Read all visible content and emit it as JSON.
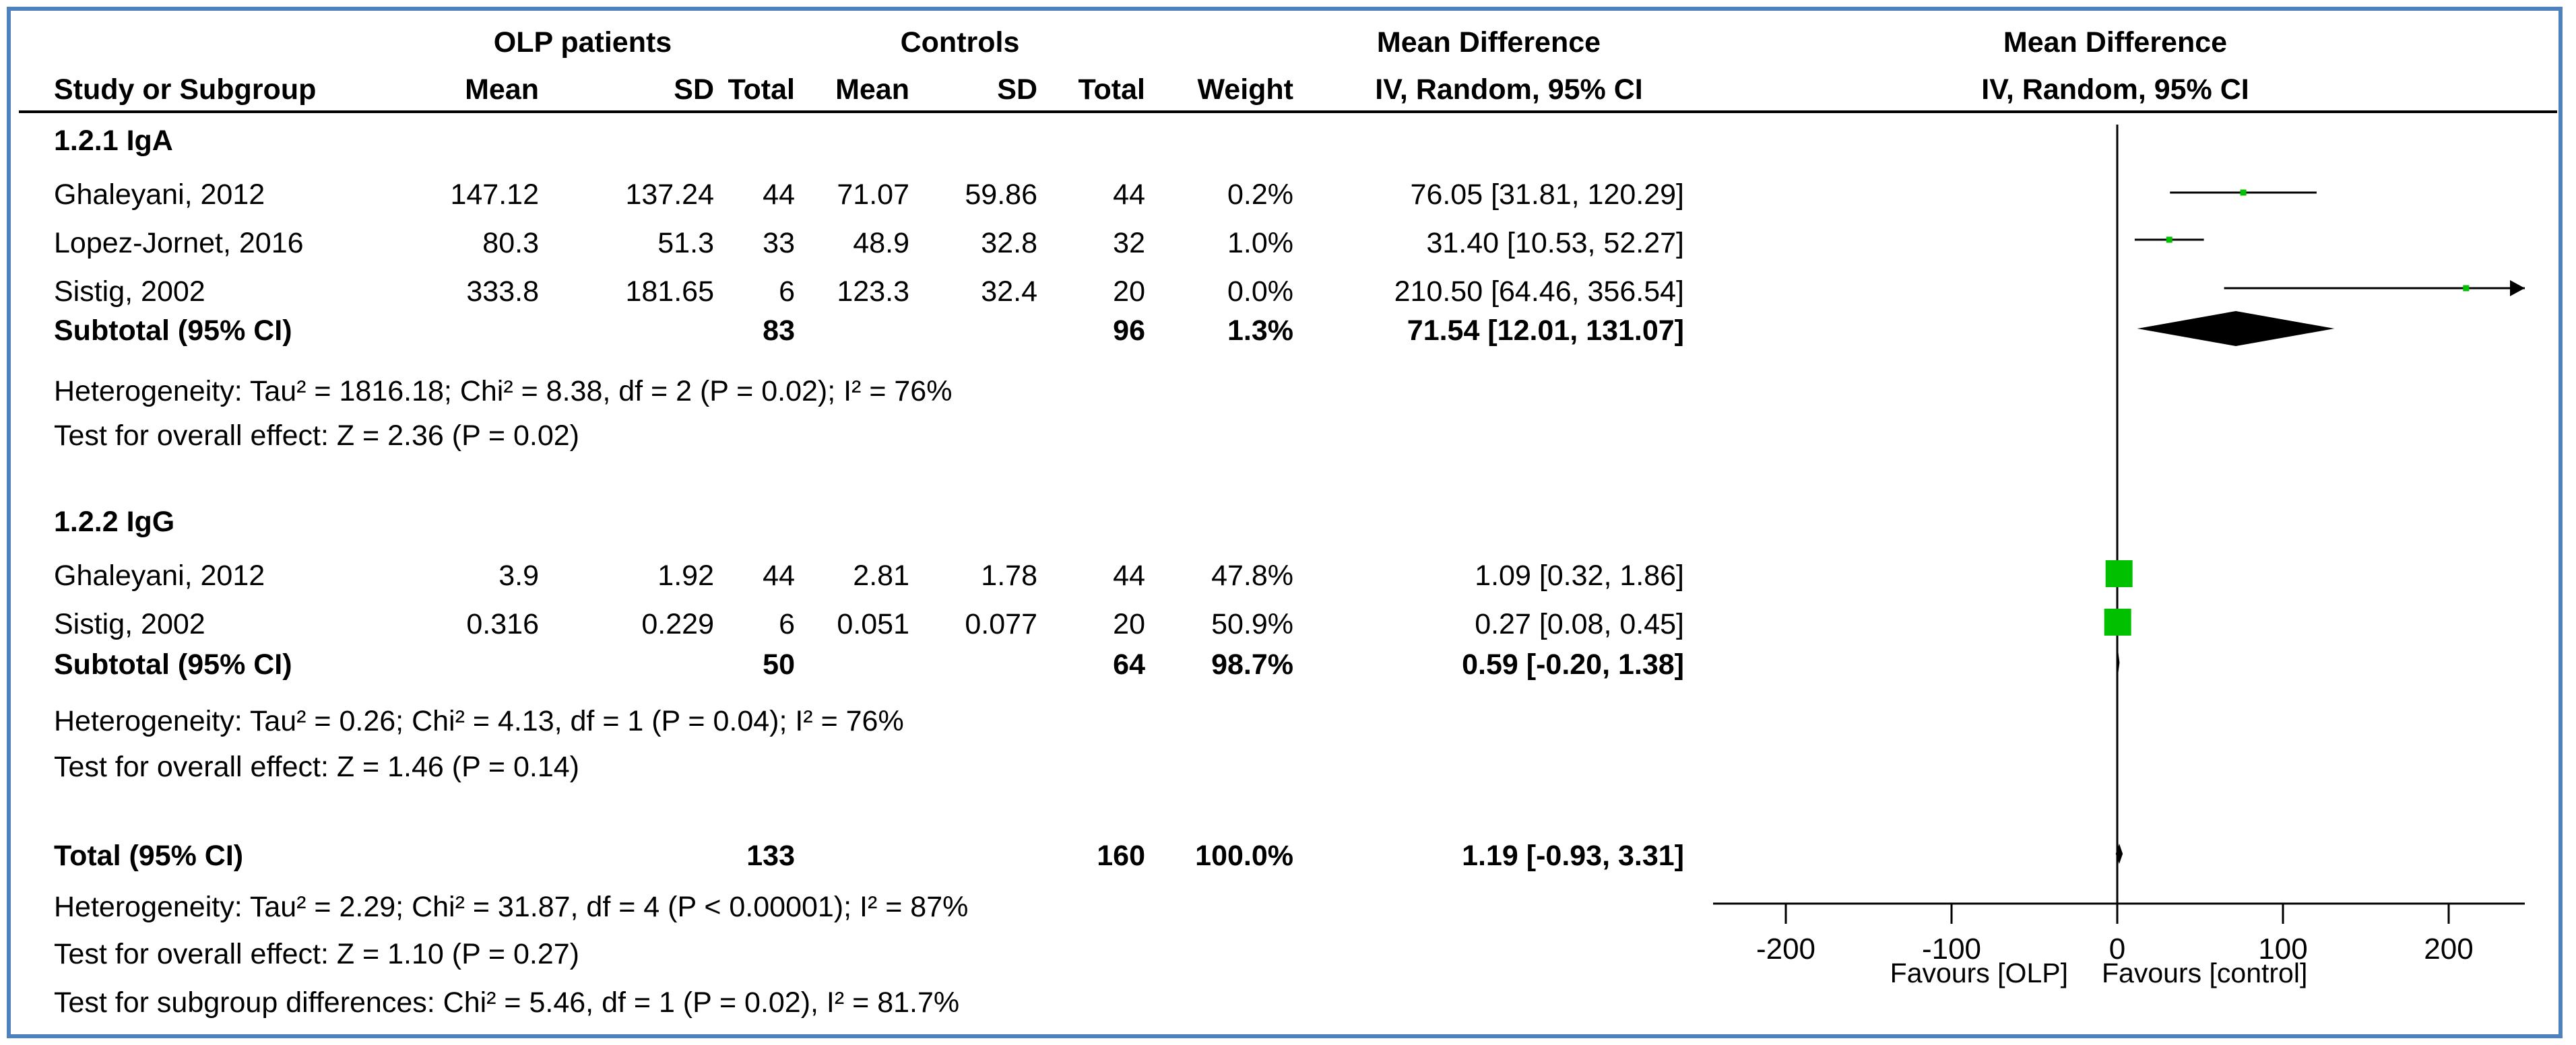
{
  "headers": {
    "group1": "OLP patients",
    "group2": "Controls",
    "effect_text": "Mean Difference",
    "effect_plot": "Mean Difference",
    "study": "Study or Subgroup",
    "mean1": "Mean",
    "sd1": "SD",
    "total1": "Total",
    "mean2": "Mean",
    "sd2": "SD",
    "total2": "Total",
    "weight": "Weight",
    "method_text": "IV, Random, 95% CI",
    "method_plot": "IV, Random, 95% CI"
  },
  "groups": [
    {
      "label": "1.2.1 IgA",
      "rows": [
        {
          "study": "Ghaleyani, 2012",
          "mean1": "147.12",
          "sd1": "137.24",
          "total1": "44",
          "mean2": "71.07",
          "sd2": "59.86",
          "total2": "44",
          "weight": "0.2%",
          "ci": "76.05 [31.81, 120.29]"
        },
        {
          "study": "Lopez-Jornet, 2016",
          "mean1": "80.3",
          "sd1": "51.3",
          "total1": "33",
          "mean2": "48.9",
          "sd2": "32.8",
          "total2": "32",
          "weight": "1.0%",
          "ci": "31.40 [10.53, 52.27]"
        },
        {
          "study": "Sistig, 2002",
          "mean1": "333.8",
          "sd1": "181.65",
          "total1": "6",
          "mean2": "123.3",
          "sd2": "32.4",
          "total2": "20",
          "weight": "0.0%",
          "ci": "210.50 [64.46, 356.54]"
        }
      ],
      "subtotal": {
        "label": "Subtotal (95% CI)",
        "total1": "83",
        "total2": "96",
        "weight": "1.3%",
        "ci": "71.54 [12.01, 131.07]"
      },
      "heterogeneity": "Heterogeneity: Tau² = 1816.18; Chi² = 8.38, df = 2 (P = 0.02); I² = 76%",
      "overall": "Test for overall effect: Z = 2.36 (P = 0.02)"
    },
    {
      "label": "1.2.2 IgG",
      "rows": [
        {
          "study": "Ghaleyani, 2012",
          "mean1": "3.9",
          "sd1": "1.92",
          "total1": "44",
          "mean2": "2.81",
          "sd2": "1.78",
          "total2": "44",
          "weight": "47.8%",
          "ci": "1.09 [0.32, 1.86]"
        },
        {
          "study": "Sistig, 2002",
          "mean1": "0.316",
          "sd1": "0.229",
          "total1": "6",
          "mean2": "0.051",
          "sd2": "0.077",
          "total2": "20",
          "weight": "50.9%",
          "ci": "0.27 [0.08, 0.45]"
        }
      ],
      "subtotal": {
        "label": "Subtotal (95% CI)",
        "total1": "50",
        "total2": "64",
        "weight": "98.7%",
        "ci": "0.59 [-0.20, 1.38]"
      },
      "heterogeneity": "Heterogeneity: Tau² = 0.26; Chi² = 4.13, df = 1 (P = 0.04); I² = 76%",
      "overall": "Test for overall effect: Z = 1.46 (P = 0.14)"
    }
  ],
  "total": {
    "label": "Total (95% CI)",
    "total1": "133",
    "total2": "160",
    "weight": "100.0%",
    "ci": "1.19 [-0.93, 3.31]",
    "heterogeneity": "Heterogeneity: Tau² = 2.29; Chi² = 31.87, df = 4 (P < 0.00001); I² = 87%",
    "overall": "Test for overall effect: Z = 1.10 (P = 0.27)",
    "subgroup": "Test for subgroup differences: Chi² = 5.46, df = 1 (P = 0.02), I² = 81.7%"
  },
  "axis": {
    "favours_left": "Favours [OLP]",
    "favours_right": "Favours [control]"
  },
  "colors": {
    "square": "#00c000",
    "frame": "#4f81bd"
  },
  "chart_data": {
    "type": "forest",
    "title": "Mean Difference (IV, Random, 95% CI)",
    "xlim": [
      -250,
      250
    ],
    "xticks": [
      -200,
      -100,
      0,
      100,
      200
    ],
    "xlabel_left": "Favours [OLP]",
    "xlabel_right": "Favours [control]",
    "studies": [
      {
        "name": "Ghaleyani, 2012 (IgA)",
        "est": 76.05,
        "lo": 31.81,
        "hi": 120.29,
        "weight": 0.2
      },
      {
        "name": "Lopez-Jornet, 2016 (IgA)",
        "est": 31.4,
        "lo": 10.53,
        "hi": 52.27,
        "weight": 1.0
      },
      {
        "name": "Sistig, 2002 (IgA)",
        "est": 210.5,
        "lo": 64.46,
        "hi": 356.54,
        "weight": 0.0
      },
      {
        "name": "Ghaleyani, 2012 (IgG)",
        "est": 1.09,
        "lo": 0.32,
        "hi": 1.86,
        "weight": 47.8
      },
      {
        "name": "Sistig, 2002 (IgG)",
        "est": 0.27,
        "lo": 0.08,
        "hi": 0.45,
        "weight": 50.9
      }
    ],
    "subtotals": [
      {
        "name": "Subtotal IgA",
        "est": 71.54,
        "lo": 12.01,
        "hi": 131.07
      },
      {
        "name": "Subtotal IgG",
        "est": 0.59,
        "lo": -0.2,
        "hi": 1.38
      }
    ],
    "overall": {
      "name": "Total",
      "est": 1.19,
      "lo": -0.93,
      "hi": 3.31
    }
  }
}
